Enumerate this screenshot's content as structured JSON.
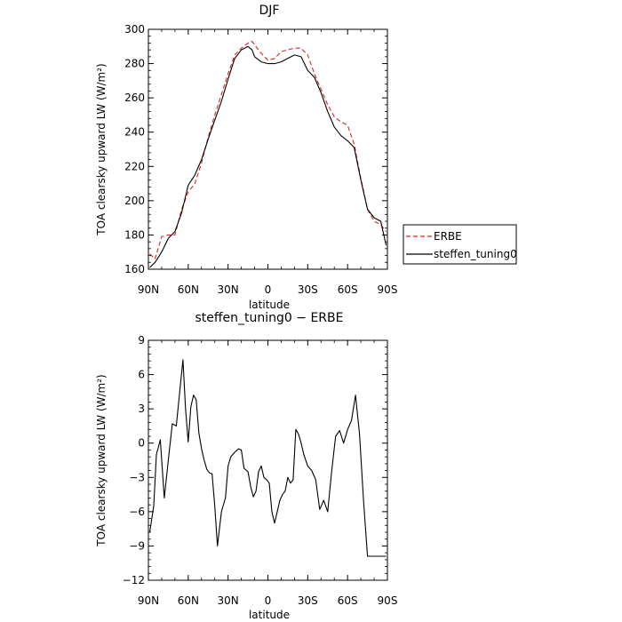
{
  "chart_data": [
    {
      "type": "line",
      "title": "DJF",
      "xlabel": "latitude",
      "ylabel": "TOA clearsky upward LW (W/m²)",
      "xlim": [
        90,
        -90
      ],
      "ylim": [
        160,
        300
      ],
      "x_ticks": [
        90,
        60,
        30,
        0,
        -30,
        -60,
        -90
      ],
      "x_tick_labels": [
        "90N",
        "60N",
        "30N",
        "0",
        "30S",
        "60S",
        "90S"
      ],
      "y_ticks": [
        160,
        180,
        200,
        220,
        240,
        260,
        280,
        300
      ],
      "y_tick_labels": [
        "160",
        "180",
        "200",
        "220",
        "240",
        "260",
        "280",
        "300"
      ],
      "legend_position": "outside-right",
      "series": [
        {
          "name": "ERBE",
          "color": "#e02020",
          "dash": "dashed",
          "x": [
            89,
            85,
            80,
            75,
            70,
            65,
            60,
            55,
            50,
            45,
            40,
            35,
            30,
            25,
            20,
            15,
            12,
            10,
            5,
            0,
            -5,
            -10,
            -15,
            -20,
            -25,
            -30,
            -35,
            -40,
            -45,
            -50,
            -55,
            -60,
            -65,
            -70,
            -75,
            -80,
            -85,
            -89
          ],
          "y": [
            169,
            166,
            179,
            180,
            180,
            195,
            205,
            210,
            222,
            237,
            250,
            262,
            274,
            285,
            289,
            292,
            293,
            291,
            286,
            282,
            283,
            287,
            288,
            289,
            289,
            285,
            274,
            265,
            256,
            249,
            246,
            244,
            233,
            213,
            195,
            188,
            186,
            182
          ]
        },
        {
          "name": "steffen_tuning0",
          "color": "#000000",
          "dash": "solid",
          "x": [
            89,
            85,
            80,
            75,
            70,
            65,
            60,
            55,
            50,
            45,
            40,
            35,
            30,
            25,
            20,
            15,
            12,
            10,
            5,
            0,
            -5,
            -10,
            -15,
            -20,
            -25,
            -30,
            -35,
            -40,
            -45,
            -50,
            -55,
            -60,
            -65,
            -70,
            -75,
            -80,
            -85,
            -89
          ],
          "y": [
            161,
            164,
            170,
            178,
            182,
            193,
            209,
            215,
            224,
            236,
            247,
            258,
            271,
            283,
            288,
            290,
            288,
            284,
            281,
            280,
            280,
            281,
            283,
            285,
            284,
            276,
            272,
            263,
            252,
            243,
            238,
            235,
            231,
            212,
            195,
            190,
            188,
            174
          ]
        }
      ]
    },
    {
      "type": "line",
      "title": "steffen_tuning0 − ERBE",
      "xlabel": "latitude",
      "ylabel": "TOA clearsky upward LW (W/m²)",
      "xlim": [
        90,
        -90
      ],
      "ylim": [
        -12,
        9
      ],
      "x_ticks": [
        90,
        60,
        30,
        0,
        -30,
        -60,
        -90
      ],
      "x_tick_labels": [
        "90N",
        "60N",
        "30N",
        "0",
        "30S",
        "60S",
        "90S"
      ],
      "y_ticks": [
        -12,
        -9,
        -6,
        -3,
        0,
        3,
        6,
        9
      ],
      "y_tick_labels": [
        "−12",
        "−9",
        "−6",
        "−3",
        "0",
        "3",
        "6",
        "9"
      ],
      "series": [
        {
          "color": "#000000",
          "dash": "solid",
          "x": [
            89,
            86,
            84,
            81,
            78,
            75,
            72,
            69,
            66,
            64,
            62,
            60,
            58,
            56,
            54,
            52,
            50,
            48,
            46,
            44,
            42,
            40,
            38,
            35,
            32,
            30,
            28,
            25,
            22,
            20,
            18,
            15,
            13,
            11,
            9,
            7,
            5,
            3,
            1,
            -1,
            -3,
            -5,
            -7,
            -9,
            -11,
            -13,
            -15,
            -17,
            -19,
            -21,
            -23,
            -25,
            -27,
            -30,
            -33,
            -36,
            -39,
            -42,
            -45,
            -48,
            -51,
            -54,
            -57,
            -60,
            -63,
            -66,
            -69,
            -72,
            -75,
            -78,
            -81,
            -84,
            -86,
            -88,
            -89
          ],
          "y": [
            -7.8,
            -5.5,
            -1.0,
            0.3,
            -4.8,
            -1.5,
            1.7,
            1.5,
            5.0,
            7.3,
            3.0,
            0.1,
            3.2,
            4.2,
            3.8,
            0.9,
            -0.5,
            -1.5,
            -2.3,
            -2.6,
            -2.7,
            -5.5,
            -9.0,
            -6.0,
            -4.8,
            -2.0,
            -1.2,
            -0.8,
            -0.5,
            -0.6,
            -2.2,
            -2.5,
            -3.8,
            -4.7,
            -4.2,
            -2.5,
            -2.0,
            -3.0,
            -3.2,
            -3.5,
            -6.0,
            -7.0,
            -6.0,
            -5.0,
            -4.5,
            -4.2,
            -3.0,
            -3.5,
            -3.2,
            1.2,
            0.8,
            0.0,
            -1.0,
            -2.0,
            -2.4,
            -3.2,
            -5.8,
            -5.0,
            -6.0,
            -2.5,
            0.6,
            1.1,
            0.0,
            1.2,
            2.0,
            4.2,
            0.8,
            -5.0,
            -9.9,
            -9.9,
            -9.9,
            -9.9,
            -9.9,
            -9.9,
            -9.9
          ]
        }
      ]
    }
  ]
}
